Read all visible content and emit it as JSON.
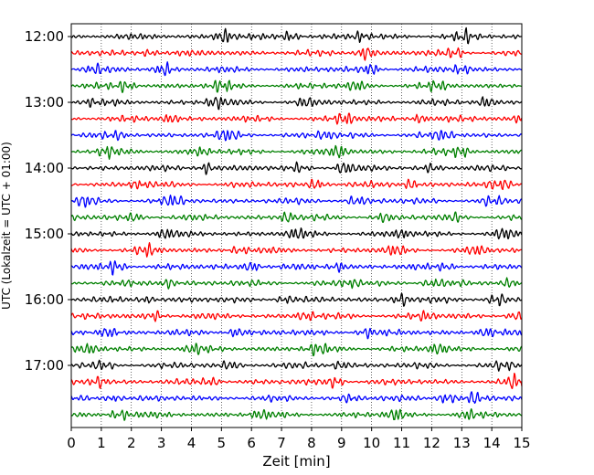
{
  "chart_data": {
    "type": "line",
    "title": "",
    "xlabel": "Zeit  [min]",
    "ylabel": "UTC (Lokalzeit = UTC + 01:00)",
    "xlim": [
      0,
      15
    ],
    "x_ticks": [
      0,
      1,
      2,
      3,
      4,
      5,
      6,
      7,
      8,
      9,
      10,
      11,
      12,
      13,
      14,
      15
    ],
    "y_tick_labels": [
      "12:00",
      "13:00",
      "14:00",
      "15:00",
      "16:00",
      "17:00"
    ],
    "grid": "vertical dotted lines at each minute",
    "trace_interval_min": 15,
    "start_time": "12:00",
    "trace_count": 24,
    "trace_colors": [
      "#000000",
      "#ff0000",
      "#0000ff",
      "#008000"
    ],
    "series": [
      {
        "start": "12:00",
        "color": "#000000",
        "bursts": [
          [
            5.1,
            1.0
          ],
          [
            7.3,
            0.7
          ],
          [
            13.1,
            0.8
          ],
          [
            9.6,
            0.5
          ]
        ]
      },
      {
        "start": "12:15",
        "color": "#ff0000",
        "bursts": [
          [
            9.8,
            0.9
          ],
          [
            2.6,
            0.5
          ],
          [
            12.8,
            0.6
          ]
        ]
      },
      {
        "start": "12:30",
        "color": "#0000ff",
        "bursts": [
          [
            3.1,
            0.8
          ],
          [
            10.0,
            0.7
          ],
          [
            0.8,
            0.5
          ],
          [
            13.0,
            0.6
          ]
        ]
      },
      {
        "start": "12:45",
        "color": "#008000",
        "bursts": [
          [
            1.8,
            0.7
          ],
          [
            5.0,
            0.7
          ],
          [
            9.5,
            0.6
          ],
          [
            12.2,
            0.5
          ]
        ]
      },
      {
        "start": "13:00",
        "color": "#000000",
        "bursts": [
          [
            4.8,
            0.8
          ],
          [
            7.8,
            0.6
          ],
          [
            13.8,
            0.7
          ],
          [
            0.6,
            0.4
          ]
        ]
      },
      {
        "start": "13:15",
        "color": "#ff0000",
        "bursts": [
          [
            9.1,
            0.8
          ],
          [
            3.3,
            0.6
          ],
          [
            11.6,
            0.6
          ],
          [
            15.0,
            0.5
          ]
        ]
      },
      {
        "start": "13:30",
        "color": "#0000ff",
        "bursts": [
          [
            5.2,
            0.7
          ],
          [
            8.5,
            0.6
          ],
          [
            12.4,
            0.6
          ],
          [
            1.5,
            0.4
          ]
        ]
      },
      {
        "start": "13:45",
        "color": "#008000",
        "bursts": [
          [
            8.9,
            0.8
          ],
          [
            1.2,
            0.6
          ],
          [
            13.0,
            0.6
          ],
          [
            4.3,
            0.5
          ]
        ]
      },
      {
        "start": "14:00",
        "color": "#000000",
        "bursts": [
          [
            4.5,
            0.8
          ],
          [
            9.1,
            0.8
          ],
          [
            7.6,
            0.5
          ],
          [
            12.0,
            0.5
          ]
        ]
      },
      {
        "start": "14:15",
        "color": "#ff0000",
        "bursts": [
          [
            8.2,
            0.7
          ],
          [
            11.3,
            0.6
          ],
          [
            14.3,
            0.7
          ],
          [
            2.3,
            0.5
          ]
        ]
      },
      {
        "start": "14:30",
        "color": "#0000ff",
        "bursts": [
          [
            0.5,
            0.8
          ],
          [
            3.4,
            0.7
          ],
          [
            9.5,
            0.6
          ],
          [
            14.0,
            0.6
          ]
        ]
      },
      {
        "start": "14:45",
        "color": "#008000",
        "bursts": [
          [
            7.2,
            0.7
          ],
          [
            2.1,
            0.5
          ],
          [
            10.4,
            0.5
          ],
          [
            12.8,
            0.5
          ]
        ]
      },
      {
        "start": "15:00",
        "color": "#000000",
        "bursts": [
          [
            7.5,
            0.6
          ],
          [
            3.1,
            0.5
          ],
          [
            11.0,
            0.5
          ],
          [
            14.4,
            0.6
          ]
        ]
      },
      {
        "start": "15:15",
        "color": "#ff0000",
        "bursts": [
          [
            2.5,
            0.7
          ],
          [
            5.6,
            0.5
          ],
          [
            10.8,
            0.6
          ],
          [
            13.5,
            0.5
          ]
        ]
      },
      {
        "start": "15:30",
        "color": "#0000ff",
        "bursts": [
          [
            1.5,
            0.9
          ],
          [
            6.0,
            0.7
          ],
          [
            8.9,
            0.6
          ],
          [
            12.5,
            0.5
          ]
        ]
      },
      {
        "start": "15:45",
        "color": "#008000",
        "bursts": [
          [
            3.2,
            0.6
          ],
          [
            9.3,
            0.6
          ],
          [
            12.0,
            0.6
          ],
          [
            14.6,
            0.5
          ]
        ]
      },
      {
        "start": "16:00",
        "color": "#000000",
        "bursts": [
          [
            11.0,
            0.8
          ],
          [
            14.2,
            0.8
          ],
          [
            2.5,
            0.5
          ],
          [
            7.1,
            0.5
          ]
        ]
      },
      {
        "start": "16:15",
        "color": "#ff0000",
        "bursts": [
          [
            2.8,
            0.6
          ],
          [
            7.8,
            0.6
          ],
          [
            11.8,
            0.5
          ],
          [
            14.8,
            0.5
          ]
        ]
      },
      {
        "start": "16:30",
        "color": "#0000ff",
        "bursts": [
          [
            1.2,
            0.7
          ],
          [
            5.5,
            0.6
          ],
          [
            9.8,
            0.6
          ],
          [
            13.8,
            0.6
          ]
        ]
      },
      {
        "start": "16:45",
        "color": "#008000",
        "bursts": [
          [
            8.2,
            0.8
          ],
          [
            12.2,
            0.7
          ],
          [
            4.1,
            0.5
          ],
          [
            0.6,
            0.5
          ]
        ]
      },
      {
        "start": "17:00",
        "color": "#000000",
        "bursts": [
          [
            9.0,
            0.6
          ],
          [
            14.4,
            0.6
          ],
          [
            1.1,
            0.5
          ],
          [
            5.3,
            0.5
          ]
        ]
      },
      {
        "start": "17:15",
        "color": "#ff0000",
        "bursts": [
          [
            0.9,
            0.7
          ],
          [
            8.8,
            0.7
          ],
          [
            14.8,
            0.8
          ],
          [
            4.7,
            0.5
          ]
        ]
      },
      {
        "start": "17:30",
        "color": "#0000ff",
        "bursts": [
          [
            12.5,
            0.9
          ],
          [
            13.4,
            0.7
          ],
          [
            1.4,
            0.5
          ],
          [
            9.3,
            0.5
          ]
        ]
      },
      {
        "start": "17:45",
        "color": "#008000",
        "bursts": [
          [
            1.6,
            0.8
          ],
          [
            10.8,
            0.7
          ],
          [
            6.3,
            0.5
          ],
          [
            13.2,
            0.5
          ]
        ]
      }
    ]
  }
}
